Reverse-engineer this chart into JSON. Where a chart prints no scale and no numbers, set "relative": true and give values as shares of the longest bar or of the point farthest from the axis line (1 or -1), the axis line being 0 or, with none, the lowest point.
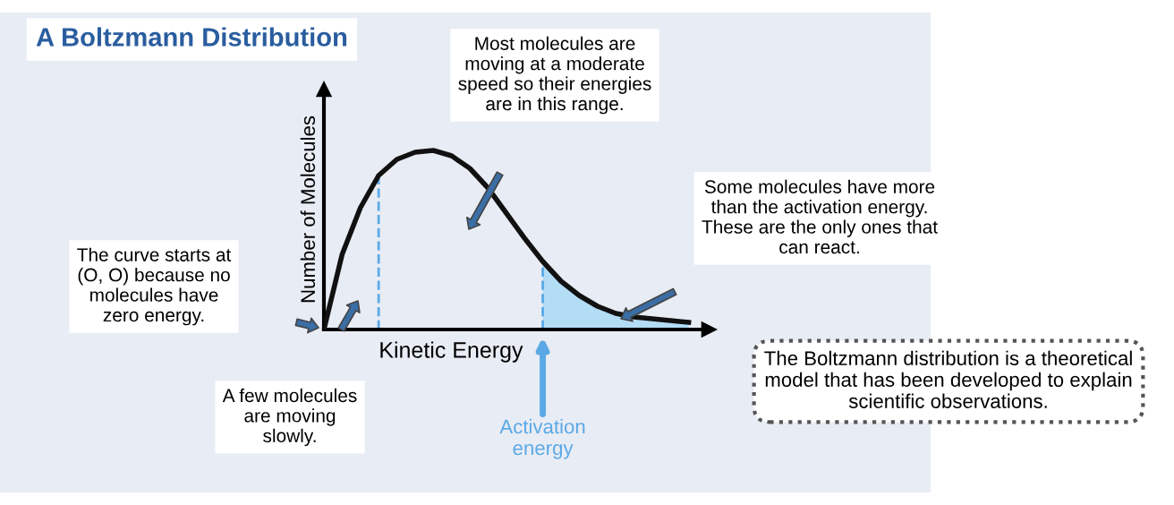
{
  "chart_data": {
    "type": "line",
    "relative": true,
    "title": "A Boltzmann Distribution",
    "xlabel": "Kinetic Energy",
    "ylabel": "Number of Molecules",
    "categories": [
      null,
      null,
      null,
      null,
      null,
      null,
      null,
      null,
      null,
      null,
      null,
      null,
      null,
      null,
      null,
      null,
      null,
      null,
      null,
      null,
      null
    ],
    "series": [
      {
        "color": "#111111",
        "values": [
          0,
          0.42,
          0.68,
          0.86,
          0.95,
          0.99,
          1.0,
          0.97,
          0.9,
          0.79,
          0.65,
          0.51,
          0.38,
          0.27,
          0.19,
          0.13,
          0.09,
          0.07,
          0.06,
          0.05,
          0.04
        ]
      },
      {
        "type": "area",
        "color": "#b3dcf5",
        "values": [
          null,
          null,
          null,
          null,
          null,
          null,
          null,
          null,
          null,
          null,
          null,
          null,
          0.38,
          0.27,
          0.19,
          0.13,
          0.09,
          0.07,
          0.06,
          0.05,
          0.04
        ]
      }
    ],
    "annotations": [
      "Activation\nenergy",
      "Most molecules are\nmoving at a moderate\nspeed so their energies\nare in this range.",
      "Some molecules have more\nthan the activation energy.\nThese are the only ones that\ncan react.",
      "The curve starts at\n(O, O) because no\nmolecules have\nzero energy.",
      "A few molecules\nare moving\nslowly.",
      "The Boltzmann distribution is a theoretical\nmodel that has been developed to explain\nscientific observations."
    ],
    "grid": false,
    "legend": false,
    "marker": "none",
    "line_style": "solid"
  }
}
